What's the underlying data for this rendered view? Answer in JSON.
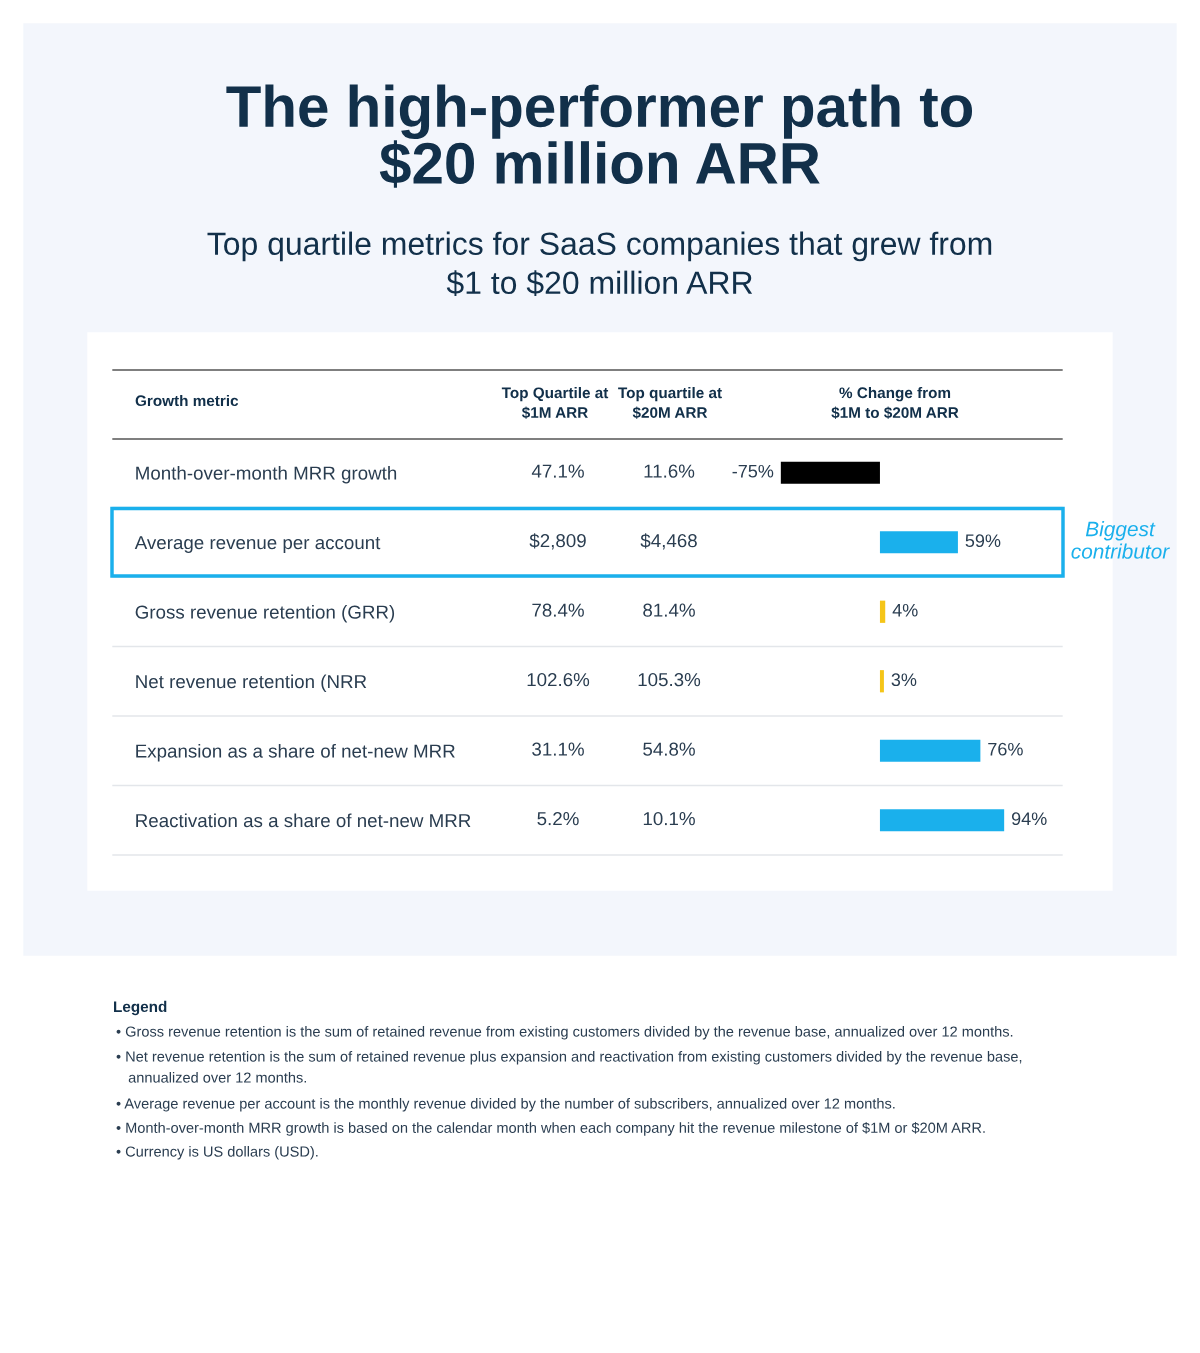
{
  "chart_data": {
    "type": "bar",
    "orientation": "horizontal",
    "title": "The high-performer path to\n$20 million ARR",
    "subtitle": "Top quartile metrics for SaaS companies that grew from\n$1 to $20 million ARR",
    "ylabel": "Growth metric",
    "categories": [
      "Month-over-month MRR growth",
      "Average revenue per account",
      "Gross revenue retention (GRR)",
      "Net revenue retention (NRR",
      "Expansion as a share of net-new MRR",
      "Reactivation as a share of net-new MRR"
    ],
    "values": [
      -75,
      59,
      4,
      3,
      76,
      94
    ],
    "value_labels": [
      "-75%",
      "59%",
      "4%",
      "3%",
      "76%",
      "94%"
    ],
    "colors": [
      "#000000",
      "#1ab0ec",
      "#f5c518",
      "#f5c518",
      "#1ab0ec",
      "#1ab0ec"
    ],
    "annotations": [
      "Top Quartile at\n$1M ARR",
      "Top quartile at\n$20M ARR",
      "% Change from\n$1M to $20M ARR",
      "47.1%",
      "11.6%",
      "$2,809",
      "$4,468",
      "78.4%",
      "81.4%",
      "102.6%",
      "105.3%",
      "31.1%",
      "54.8%",
      "5.2%",
      "10.1%",
      "Biggest\ncontributor",
      "Legend",
      "• Gross revenue retention is the sum of retained revenue from existing customers divided by the revenue base, annualized over 12 months.",
      "• Net revenue retention is the sum of retained revenue plus expansion and reactivation from existing customers divided by the revenue base,\n   annualized over 12 months.",
      "• Average revenue per account is the monthly revenue divided by the number of subscribers, annualized over 12 months.",
      "• Month-over-month MRR growth is based on the calendar month when each company hit the revenue milestone of $1M or $20M ARR.",
      "• Currency is US dollars (USD)."
    ],
    "legend": false,
    "grid": false
  }
}
